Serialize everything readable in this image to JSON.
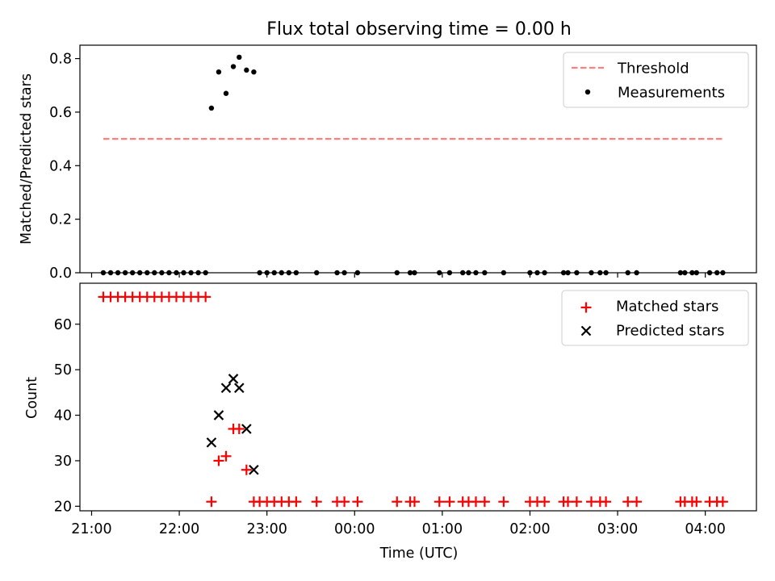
{
  "title": "Flux total observing time = 0.00 h",
  "chart_data": [
    {
      "type": "scatter",
      "title": "Flux total observing time = 0.00 h",
      "xlabel": "",
      "ylabel": "Matched/Predicted stars",
      "xlim": [
        "20:52",
        "04:35"
      ],
      "ylim": [
        0,
        0.85
      ],
      "yticks": [
        0.0,
        0.2,
        0.4,
        0.6,
        0.8
      ],
      "ytick_labels": [
        "0.0",
        "0.2",
        "0.4",
        "0.6",
        "0.8"
      ],
      "grid": false,
      "legend_position": "upper-right",
      "series": [
        {
          "name": "Threshold",
          "type": "line",
          "style": "dashed",
          "color": "#ff7f7f",
          "points": [
            [
              "21:08",
              0.5
            ],
            [
              "04:12",
              0.5
            ]
          ]
        },
        {
          "name": "Measurements",
          "type": "scatter",
          "marker": "dot",
          "color": "#000000",
          "points": [
            [
              "21:08",
              0
            ],
            [
              "21:13",
              0
            ],
            [
              "21:18",
              0
            ],
            [
              "21:23",
              0
            ],
            [
              "21:28",
              0
            ],
            [
              "21:33",
              0
            ],
            [
              "21:38",
              0
            ],
            [
              "21:43",
              0
            ],
            [
              "21:48",
              0
            ],
            [
              "21:53",
              0
            ],
            [
              "21:58",
              0
            ],
            [
              "22:03",
              0
            ],
            [
              "22:08",
              0
            ],
            [
              "22:13",
              0
            ],
            [
              "22:18",
              0
            ],
            [
              "22:22",
              0.615
            ],
            [
              "22:27",
              0.75
            ],
            [
              "22:32",
              0.67
            ],
            [
              "22:37",
              0.77
            ],
            [
              "22:41",
              0.805
            ],
            [
              "22:46",
              0.757
            ],
            [
              "22:51",
              0.75
            ],
            [
              "22:55",
              0
            ],
            [
              "23:00",
              0
            ],
            [
              "23:05",
              0
            ],
            [
              "23:10",
              0
            ],
            [
              "23:15",
              0
            ],
            [
              "23:20",
              0
            ],
            [
              "23:34",
              0
            ],
            [
              "23:48",
              0
            ],
            [
              "23:53",
              0
            ],
            [
              "00:02",
              0
            ],
            [
              "00:29",
              0
            ],
            [
              "00:38",
              0
            ],
            [
              "00:41",
              0
            ],
            [
              "00:58",
              0
            ],
            [
              "01:05",
              0
            ],
            [
              "01:14",
              0
            ],
            [
              "01:18",
              0
            ],
            [
              "01:23",
              0
            ],
            [
              "01:29",
              0
            ],
            [
              "01:42",
              0
            ],
            [
              "02:00",
              0
            ],
            [
              "02:05",
              0
            ],
            [
              "02:10",
              0
            ],
            [
              "02:23",
              0
            ],
            [
              "02:26",
              0
            ],
            [
              "02:32",
              0
            ],
            [
              "02:42",
              0
            ],
            [
              "02:48",
              0
            ],
            [
              "02:52",
              0
            ],
            [
              "03:07",
              0
            ],
            [
              "03:13",
              0
            ],
            [
              "03:43",
              0
            ],
            [
              "03:46",
              0
            ],
            [
              "03:51",
              0
            ],
            [
              "03:54",
              0
            ],
            [
              "04:03",
              0
            ],
            [
              "04:08",
              0
            ],
            [
              "04:12",
              0
            ]
          ]
        }
      ]
    },
    {
      "type": "scatter",
      "xlabel": "Time (UTC)",
      "ylabel": "Count",
      "xlim": [
        "20:52",
        "04:35"
      ],
      "xticks": [
        "21:00",
        "22:00",
        "23:00",
        "00:00",
        "01:00",
        "02:00",
        "03:00",
        "04:00"
      ],
      "ylim": [
        19,
        69
      ],
      "yticks": [
        20,
        30,
        40,
        50,
        60
      ],
      "ytick_labels": [
        "20",
        "30",
        "40",
        "50",
        "60"
      ],
      "grid": false,
      "legend_position": "upper-right",
      "series": [
        {
          "name": "Matched stars",
          "marker": "plus",
          "color": "#ff0000",
          "points": [
            [
              "21:08",
              66
            ],
            [
              "21:13",
              66
            ],
            [
              "21:18",
              66
            ],
            [
              "21:23",
              66
            ],
            [
              "21:28",
              66
            ],
            [
              "21:33",
              66
            ],
            [
              "21:38",
              66
            ],
            [
              "21:43",
              66
            ],
            [
              "21:48",
              66
            ],
            [
              "21:53",
              66
            ],
            [
              "21:58",
              66
            ],
            [
              "22:03",
              66
            ],
            [
              "22:08",
              66
            ],
            [
              "22:13",
              66
            ],
            [
              "22:18",
              66
            ],
            [
              "22:22",
              21
            ],
            [
              "22:27",
              30
            ],
            [
              "22:32",
              31
            ],
            [
              "22:37",
              37
            ],
            [
              "22:41",
              37
            ],
            [
              "22:46",
              28
            ],
            [
              "22:51",
              21
            ],
            [
              "22:55",
              21
            ],
            [
              "23:00",
              21
            ],
            [
              "23:05",
              21
            ],
            [
              "23:10",
              21
            ],
            [
              "23:15",
              21
            ],
            [
              "23:20",
              21
            ],
            [
              "23:34",
              21
            ],
            [
              "23:48",
              21
            ],
            [
              "23:53",
              21
            ],
            [
              "00:02",
              21
            ],
            [
              "00:29",
              21
            ],
            [
              "00:38",
              21
            ],
            [
              "00:41",
              21
            ],
            [
              "00:58",
              21
            ],
            [
              "01:05",
              21
            ],
            [
              "01:14",
              21
            ],
            [
              "01:18",
              21
            ],
            [
              "01:23",
              21
            ],
            [
              "01:29",
              21
            ],
            [
              "01:42",
              21
            ],
            [
              "02:00",
              21
            ],
            [
              "02:05",
              21
            ],
            [
              "02:10",
              21
            ],
            [
              "02:23",
              21
            ],
            [
              "02:26",
              21
            ],
            [
              "02:32",
              21
            ],
            [
              "02:42",
              21
            ],
            [
              "02:48",
              21
            ],
            [
              "02:52",
              21
            ],
            [
              "03:07",
              21
            ],
            [
              "03:13",
              21
            ],
            [
              "03:43",
              21
            ],
            [
              "03:46",
              21
            ],
            [
              "03:51",
              21
            ],
            [
              "03:54",
              21
            ],
            [
              "04:03",
              21
            ],
            [
              "04:08",
              21
            ],
            [
              "04:12",
              21
            ]
          ]
        },
        {
          "name": "Predicted stars",
          "marker": "x",
          "color": "#000000",
          "points": [
            [
              "22:22",
              34
            ],
            [
              "22:27",
              40
            ],
            [
              "22:32",
              46
            ],
            [
              "22:37",
              48
            ],
            [
              "22:41",
              46
            ],
            [
              "22:46",
              37
            ],
            [
              "22:51",
              28
            ]
          ]
        }
      ]
    }
  ]
}
